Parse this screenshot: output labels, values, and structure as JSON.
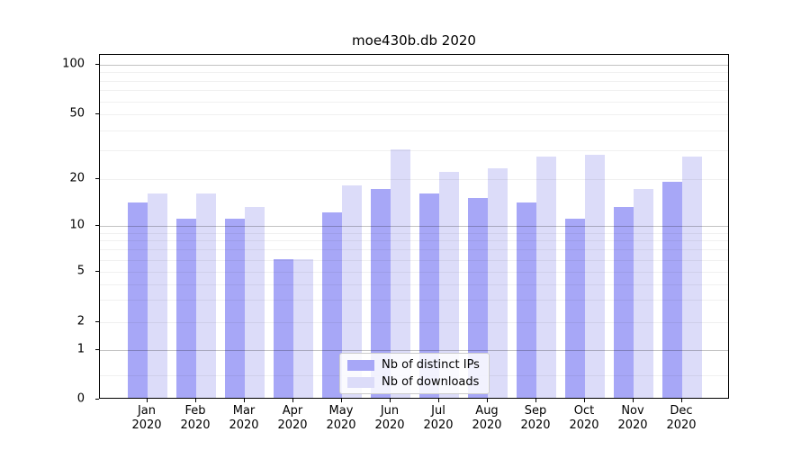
{
  "chart_data": {
    "type": "bar",
    "title": "moe430b.db 2020",
    "categories": [
      "Jan",
      "Feb",
      "Mar",
      "Apr",
      "May",
      "Jun",
      "Jul",
      "Aug",
      "Sep",
      "Oct",
      "Nov",
      "Dec"
    ],
    "category_year": "2020",
    "series": [
      {
        "name": "Nb of distinct IPs",
        "color": "#a7a7f7",
        "values": [
          14,
          11,
          11,
          6,
          12,
          17,
          16,
          15,
          14,
          11,
          13,
          19
        ]
      },
      {
        "name": "Nb of downloads",
        "color": "#dcdcf9",
        "values": [
          16,
          16,
          13,
          6,
          18,
          30,
          22,
          23,
          27,
          28,
          17,
          27
        ]
      }
    ],
    "xlabel": "",
    "ylabel": "",
    "y_axis": {
      "scale": "symlog",
      "tick_values": [
        0,
        1,
        2,
        5,
        10,
        20,
        50,
        100
      ],
      "tick_labels": [
        "0",
        "1",
        "2",
        "5",
        "10",
        "20",
        "50",
        "100"
      ],
      "major_gridline_values": [
        1,
        10,
        100
      ],
      "minor_gridline_values": [
        0.5,
        3,
        4,
        6,
        7,
        8,
        9,
        30,
        40,
        60,
        70,
        80,
        90
      ],
      "ylim": [
        0,
        120
      ]
    },
    "legend": {
      "position": "lower center",
      "entries": [
        "Nb of distinct IPs",
        "Nb of downloads"
      ]
    },
    "grid": true
  }
}
